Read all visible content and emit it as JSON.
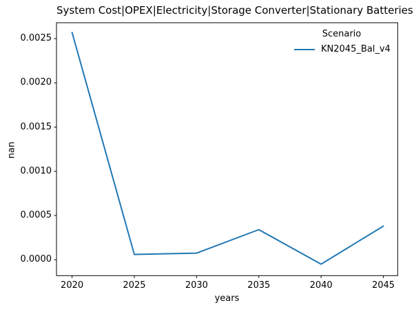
{
  "figure": {
    "background": "#ffffff",
    "text_color": "#000000",
    "spine_color": "#000000"
  },
  "chart_data": {
    "type": "line",
    "title": "System Cost|OPEX|Electricity|Storage Converter|Stationary Batteries",
    "xlabel": "years",
    "ylabel": "nan",
    "x": [
      2020,
      2025,
      2030,
      2035,
      2040,
      2045
    ],
    "series": [
      {
        "name": "KN2045_Bal_v4",
        "color": "#1f77b4",
        "values": [
          0.00257,
          6e-05,
          7.5e-05,
          0.00034,
          -5e-05,
          0.00038
        ]
      }
    ],
    "xlim": [
      2018.75,
      2046.15
    ],
    "ylim": [
      -0.00018,
      0.00268
    ],
    "xticks": [
      2020,
      2025,
      2030,
      2035,
      2040,
      2045
    ],
    "xtick_labels": [
      "2020",
      "2025",
      "2030",
      "2035",
      "2040",
      "2045"
    ],
    "yticks": [
      0.0,
      0.0005,
      0.001,
      0.0015,
      0.002,
      0.0025
    ],
    "ytick_labels": [
      "0.0000",
      "0.0005",
      "0.0010",
      "0.0015",
      "0.0020",
      "0.0025"
    ],
    "grid": false,
    "legend_position": "upper right"
  },
  "legend": {
    "title": "Scenario",
    "items": [
      {
        "label": "KN2045_Bal_v4",
        "color": "#1f77b4"
      }
    ]
  }
}
